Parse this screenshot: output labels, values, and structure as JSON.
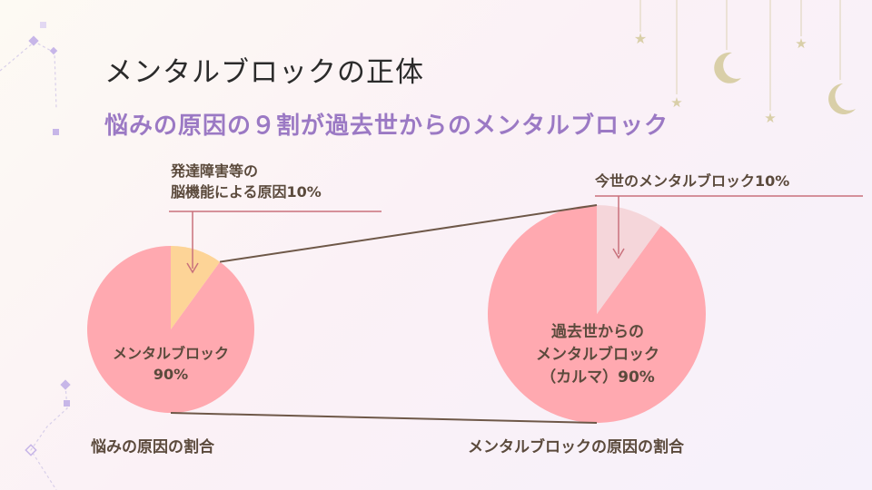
{
  "title": "メンタルブロックの正体",
  "subtitle": "悩みの原因の９割が過去世からのメンタルブロック",
  "colors": {
    "pink": "#ffa9b0",
    "peach": "#fdd497",
    "light_pink": "#f5d6da",
    "connector": "#6e5848",
    "rule": "#c9717c",
    "subtitle": "#9b79c4",
    "moon_star": "#d9cfa8"
  },
  "chart_data": [
    {
      "type": "pie",
      "title": "悩みの原因の割合",
      "slices": [
        {
          "label": "メンタルブロック 90%",
          "value": 90,
          "color": "#ffa9b0"
        },
        {
          "label": "発達障害等の 脳機能による原因10%",
          "value": 10,
          "color": "#fdd497"
        }
      ],
      "labels": {
        "inner_line1": "メンタルブロック",
        "inner_line2": "90%",
        "callout_line1": "発達障害等の",
        "callout_line2": "脳機能による原因10%",
        "caption": "悩みの原因の割合"
      }
    },
    {
      "type": "pie",
      "title": "メンタルブロックの原因の割合",
      "slices": [
        {
          "label": "過去世からの メンタルブロック （カルマ）90%",
          "value": 90,
          "color": "#ffa9b0"
        },
        {
          "label": "今世のメンタルブロック10%",
          "value": 10,
          "color": "#f5d6da"
        }
      ],
      "labels": {
        "inner_line1": "過去世からの",
        "inner_line2": "メンタルブロック",
        "inner_line3": "（カルマ）90%",
        "callout": "今世のメンタルブロック10%",
        "caption": "メンタルブロックの原因の割合"
      }
    }
  ]
}
